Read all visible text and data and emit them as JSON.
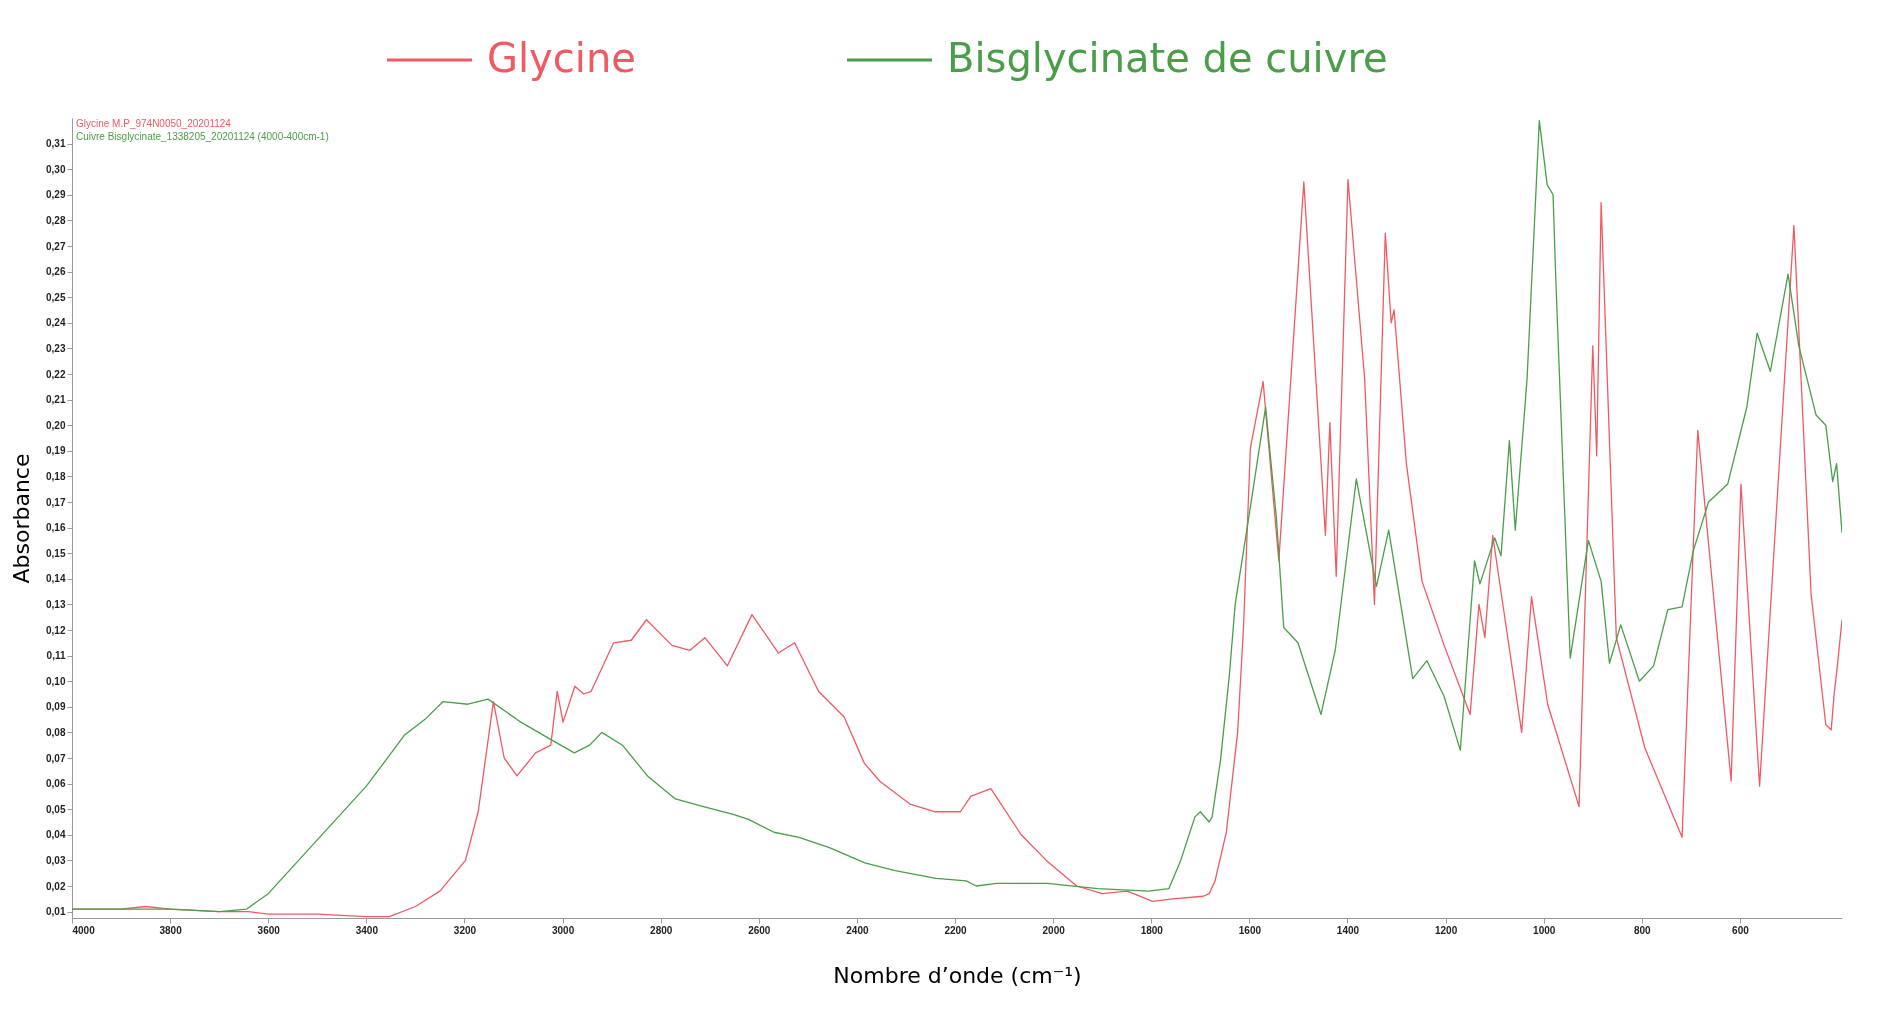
{
  "chart_data": {
    "type": "line",
    "xlabel": "Nombre d’onde (cm⁻¹)",
    "ylabel": "Absorbance",
    "annotations": [
      "Glycine M.P_974N0050_20201124",
      "Cuivre Bisglycinate_1338205_20201124 (4000-400cm-1)"
    ],
    "legend": "top",
    "grid": false,
    "marker": "none",
    "line_style": "solid",
    "xlim": [
      4000,
      392
    ],
    "ylim": [
      0.0075,
      0.32
    ],
    "xticks": [
      4000,
      3800,
      3600,
      3400,
      3200,
      3000,
      2800,
      2600,
      2400,
      2200,
      2000,
      1800,
      1600,
      1400,
      1200,
      1000,
      800,
      600
    ],
    "yticks": [
      {
        "value": 0.01,
        "label": "0,01"
      },
      {
        "value": 0.02,
        "label": "0,02"
      },
      {
        "value": 0.03,
        "label": "0,03"
      },
      {
        "value": 0.04,
        "label": "0,04"
      },
      {
        "value": 0.05,
        "label": "0,05"
      },
      {
        "value": 0.06,
        "label": "0,06"
      },
      {
        "value": 0.07,
        "label": "0,07"
      },
      {
        "value": 0.08,
        "label": "0,08"
      },
      {
        "value": 0.09,
        "label": "0,09"
      },
      {
        "value": 0.1,
        "label": "0,10"
      },
      {
        "value": 0.11,
        "label": "0,11"
      },
      {
        "value": 0.12,
        "label": "0,12"
      },
      {
        "value": 0.13,
        "label": "0,13"
      },
      {
        "value": 0.14,
        "label": "0,14"
      },
      {
        "value": 0.15,
        "label": "0,15"
      },
      {
        "value": 0.16,
        "label": "0,16"
      },
      {
        "value": 0.17,
        "label": "0,17"
      },
      {
        "value": 0.18,
        "label": "0,18"
      },
      {
        "value": 0.19,
        "label": "0,19"
      },
      {
        "value": 0.2,
        "label": "0,20"
      },
      {
        "value": 0.21,
        "label": "0,21"
      },
      {
        "value": 0.22,
        "label": "0,22"
      },
      {
        "value": 0.23,
        "label": "0,23"
      },
      {
        "value": 0.24,
        "label": "0,24"
      },
      {
        "value": 0.25,
        "label": "0,25"
      },
      {
        "value": 0.26,
        "label": "0,26"
      },
      {
        "value": 0.27,
        "label": "0,27"
      },
      {
        "value": 0.28,
        "label": "0,28"
      },
      {
        "value": 0.29,
        "label": "0,29"
      },
      {
        "value": 0.3,
        "label": "0,30"
      },
      {
        "value": 0.31,
        "label": "0,31"
      }
    ],
    "series": [
      {
        "name": "Glycine",
        "color": "#ef5a64",
        "x": [
          4000,
          3900,
          3850,
          3800,
          3700,
          3640,
          3600,
          3500,
          3400,
          3353,
          3300,
          3250,
          3198,
          3172,
          3141,
          3119,
          3093,
          3055,
          3024,
          3011,
          2999,
          2975,
          2957,
          2942,
          2896,
          2860,
          2829,
          2777,
          2741,
          2710,
          2664,
          2614,
          2560,
          2527,
          2478,
          2426,
          2385,
          2354,
          2292,
          2240,
          2189,
          2168,
          2127,
          2065,
          2014,
          1952,
          1900,
          1849,
          1797,
          1756,
          1694,
          1682,
          1670,
          1647,
          1624,
          1612,
          1598,
          1572,
          1540,
          1489,
          1445,
          1436,
          1423,
          1399,
          1365,
          1345,
          1323,
          1311,
          1305,
          1280,
          1248,
          1203,
          1150,
          1132,
          1120,
          1104,
          1045,
          1025,
          992,
          928,
          900,
          892,
          883,
          852,
          794,
          718,
          686,
          618,
          598,
          560,
          490,
          455,
          425,
          414,
          408,
          402,
          392
        ],
        "values": [
          0.011,
          0.011,
          0.012,
          0.011,
          0.01,
          0.01,
          0.009,
          0.009,
          0.008,
          0.008,
          0.012,
          0.018,
          0.03,
          0.049,
          0.092,
          0.07,
          0.063,
          0.072,
          0.075,
          0.096,
          0.084,
          0.098,
          0.095,
          0.096,
          0.115,
          0.116,
          0.124,
          0.114,
          0.112,
          0.117,
          0.106,
          0.126,
          0.111,
          0.115,
          0.096,
          0.086,
          0.068,
          0.061,
          0.052,
          0.049,
          0.049,
          0.055,
          0.058,
          0.04,
          0.03,
          0.02,
          0.017,
          0.018,
          0.014,
          0.015,
          0.016,
          0.017,
          0.022,
          0.041,
          0.08,
          0.121,
          0.191,
          0.217,
          0.147,
          0.295,
          0.157,
          0.201,
          0.141,
          0.296,
          0.218,
          0.13,
          0.275,
          0.24,
          0.245,
          0.185,
          0.139,
          0.114,
          0.087,
          0.13,
          0.117,
          0.157,
          0.08,
          0.133,
          0.091,
          0.051,
          0.231,
          0.188,
          0.287,
          0.117,
          0.074,
          0.039,
          0.198,
          0.061,
          0.177,
          0.059,
          0.278,
          0.134,
          0.083,
          0.081,
          0.095,
          0.105,
          0.124
        ]
      },
      {
        "name": "Bisglycinate de cuivre",
        "color": "#4a9e4a",
        "x": [
          4000,
          3900,
          3800,
          3700,
          3644,
          3600,
          3500,
          3400,
          3353,
          3322,
          3281,
          3244,
          3193,
          3152,
          3085,
          3013,
          2976,
          2945,
          2920,
          2878,
          2827,
          2770,
          2713,
          2652,
          2621,
          2569,
          2518,
          2456,
          2384,
          2322,
          2239,
          2177,
          2157,
          2115,
          2012,
          1909,
          1806,
          1764,
          1740,
          1711,
          1700,
          1682,
          1676,
          1659,
          1641,
          1629,
          1598,
          1567,
          1545,
          1530,
          1501,
          1454,
          1425,
          1382,
          1341,
          1316,
          1267,
          1238,
          1203,
          1170,
          1141,
          1130,
          1100,
          1087,
          1070,
          1058,
          1034,
          1009,
          993,
          981,
          975,
          946,
          909,
          883,
          866,
          843,
          805,
          776,
          747,
          718,
          695,
          664,
          625,
          586,
          565,
          538,
          502,
          480,
          445,
          425,
          411,
          403,
          392
        ],
        "values": [
          0.011,
          0.011,
          0.011,
          0.01,
          0.011,
          0.017,
          0.038,
          0.059,
          0.071,
          0.079,
          0.085,
          0.092,
          0.091,
          0.093,
          0.084,
          0.076,
          0.072,
          0.075,
          0.08,
          0.075,
          0.063,
          0.054,
          0.051,
          0.048,
          0.046,
          0.041,
          0.039,
          0.035,
          0.029,
          0.026,
          0.023,
          0.022,
          0.02,
          0.021,
          0.021,
          0.019,
          0.018,
          0.019,
          0.03,
          0.047,
          0.049,
          0.045,
          0.047,
          0.069,
          0.102,
          0.13,
          0.168,
          0.207,
          0.164,
          0.121,
          0.115,
          0.087,
          0.112,
          0.179,
          0.137,
          0.159,
          0.101,
          0.108,
          0.094,
          0.073,
          0.147,
          0.138,
          0.156,
          0.149,
          0.194,
          0.159,
          0.218,
          0.319,
          0.294,
          0.29,
          0.255,
          0.109,
          0.155,
          0.139,
          0.107,
          0.122,
          0.1,
          0.106,
          0.128,
          0.129,
          0.151,
          0.17,
          0.177,
          0.207,
          0.236,
          0.221,
          0.259,
          0.231,
          0.204,
          0.2,
          0.178,
          0.185,
          0.158
        ]
      }
    ]
  }
}
